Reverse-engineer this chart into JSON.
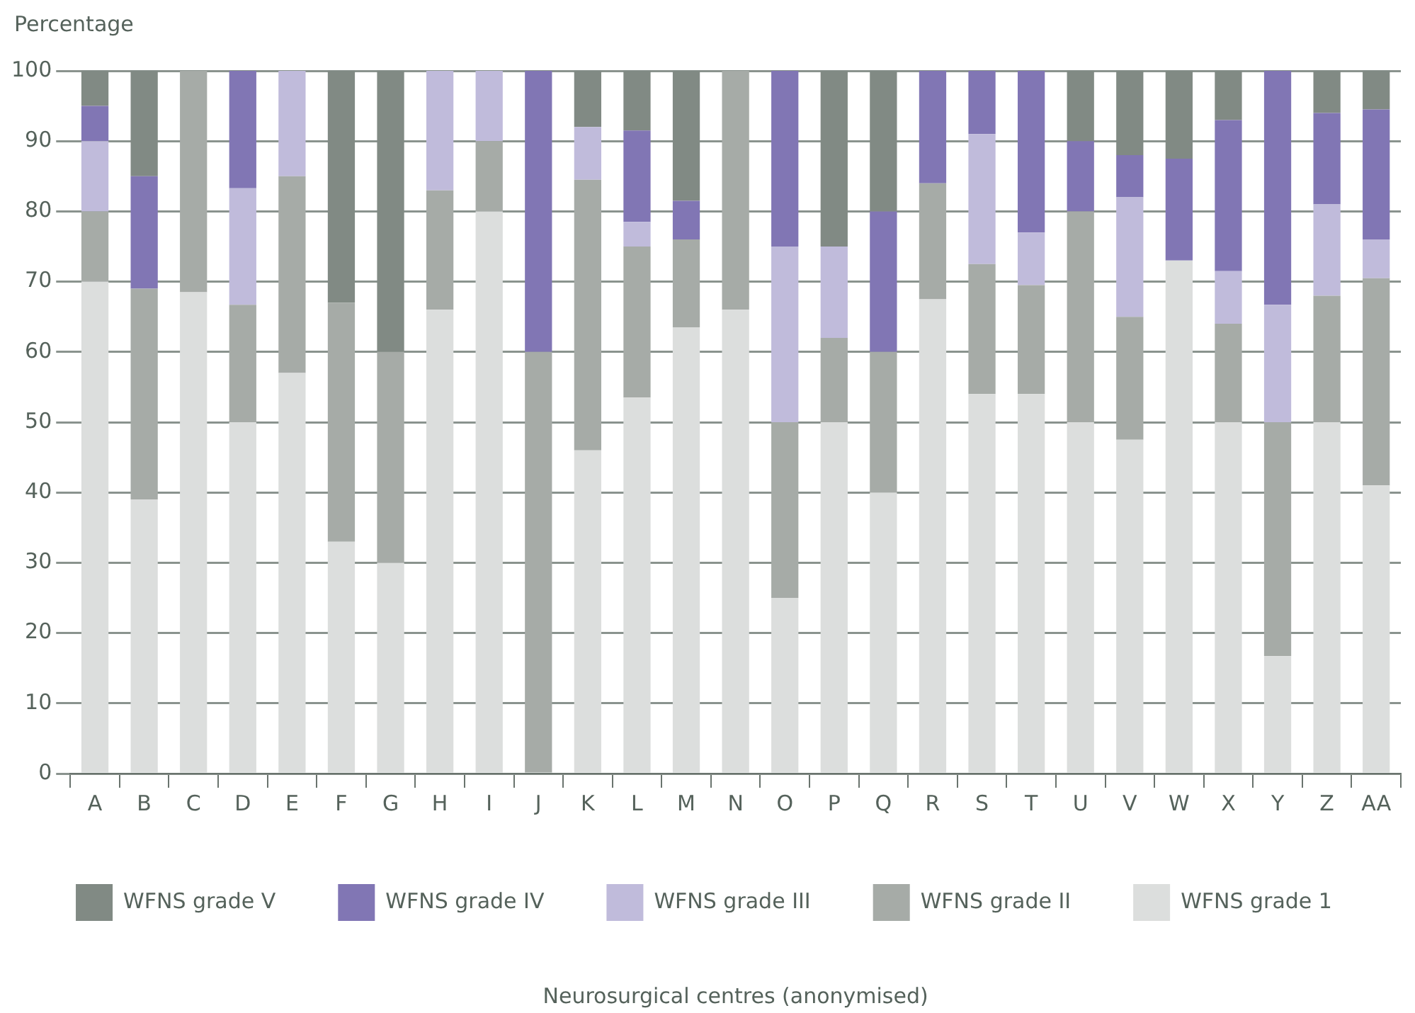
{
  "chart_data": {
    "type": "bar",
    "stacked": true,
    "ylabel": "Percentage",
    "annotations": [
      "Neurosurgical centres (anonymised)"
    ],
    "categories": [
      "A",
      "B",
      "C",
      "D",
      "E",
      "F",
      "G",
      "H",
      "I",
      "J",
      "K",
      "L",
      "M",
      "N",
      "O",
      "P",
      "Q",
      "R",
      "S",
      "T",
      "U",
      "V",
      "W",
      "X",
      "Y",
      "Z",
      "AA"
    ],
    "series": [
      {
        "name": "WFNS grade 1",
        "color": "#dcdedd",
        "values": [
          70,
          39,
          68.5,
          50,
          57,
          33,
          30,
          66,
          80,
          0,
          46,
          53.5,
          63.5,
          66,
          25,
          50,
          40,
          67.5,
          54,
          54,
          50,
          47.5,
          73,
          50,
          16.7,
          50,
          41
        ]
      },
      {
        "name": "WFNS grade II",
        "color": "#a6aba7",
        "values": [
          10,
          30,
          31.5,
          16.7,
          28,
          34,
          30,
          17,
          10,
          60,
          38.5,
          21.5,
          12.5,
          34,
          25,
          12,
          20,
          16.5,
          18.5,
          15.5,
          30,
          17.5,
          0,
          14,
          33.3,
          18,
          29.5
        ]
      },
      {
        "name": "WFNS grade III",
        "color": "#c0bbdb",
        "values": [
          10,
          0,
          0,
          16.6,
          15,
          0,
          0,
          17,
          10,
          0,
          7.5,
          3.5,
          0,
          0,
          25,
          13,
          0,
          0,
          18.5,
          7.5,
          0,
          17,
          0,
          7.5,
          16.7,
          13,
          5.5
        ]
      },
      {
        "name": "WFNS grade IV",
        "color": "#8176b4",
        "values": [
          5,
          16,
          0,
          16.7,
          0,
          0,
          0,
          0,
          0,
          40,
          0,
          13,
          5.5,
          0,
          25,
          0,
          20,
          16,
          9,
          23,
          10,
          6,
          14.5,
          21.5,
          33.3,
          13,
          18.5
        ]
      },
      {
        "name": "WFNS grade V",
        "color": "#818a84",
        "values": [
          5,
          15,
          0,
          0,
          0,
          33,
          40,
          0,
          0,
          0,
          8,
          8.5,
          18.5,
          0,
          0,
          25,
          20,
          0,
          0,
          0,
          10,
          12,
          12.5,
          7,
          0,
          6,
          5.5
        ]
      }
    ],
    "ylim": [
      0,
      100
    ],
    "yticks": [
      0,
      10,
      20,
      30,
      40,
      50,
      60,
      70,
      80,
      90,
      100
    ],
    "grid": "y",
    "legend": "bottom"
  }
}
